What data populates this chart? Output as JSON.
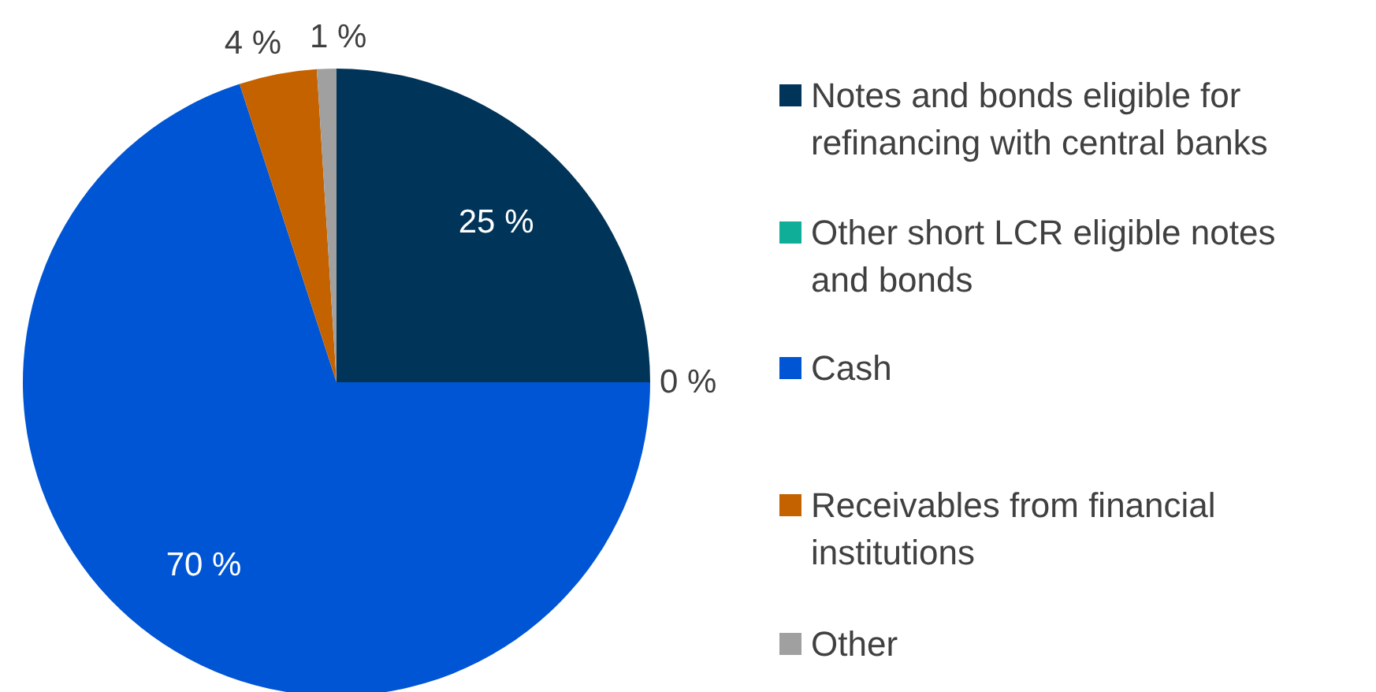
{
  "chart_data": {
    "type": "pie",
    "categories": [
      "Notes and bonds eligible for refinancing with central banks",
      "Other short LCR eligible notes and bonds",
      "Cash",
      "Receivables from financial institutions",
      "Other"
    ],
    "values": [
      25,
      0,
      70,
      4,
      1
    ],
    "colors": [
      "#003459",
      "#0fae98",
      "#0055d4",
      "#c46200",
      "#a0a0a0"
    ],
    "value_labels": [
      "25 %",
      "0 %",
      "70 %",
      "4 %",
      "1 %"
    ],
    "legend": "right"
  }
}
